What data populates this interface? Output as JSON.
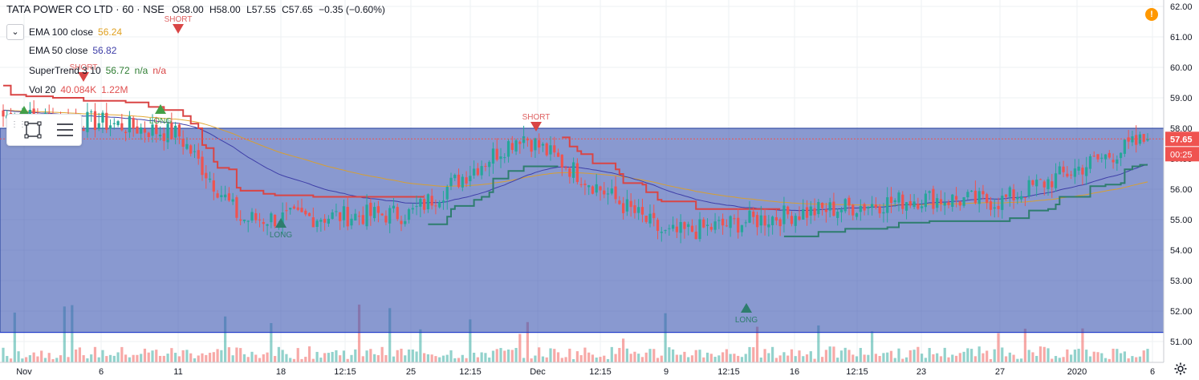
{
  "symbol": {
    "title": "TATA POWER CO LTD · 60 · NSE",
    "open": "O58.00",
    "high": "H58.00",
    "low": "L57.55",
    "close": "C57.65",
    "change": "−0.35 (−0.60%)"
  },
  "indicators": [
    {
      "name": "EMA 100 close",
      "value": "56.24",
      "color": "#e0a020"
    },
    {
      "name": "EMA 50 close",
      "value": "56.82",
      "color": "#3f3fa8"
    },
    {
      "name": "SuperTrend 3 10",
      "value": "56.72",
      "value2": "n/a",
      "value3": "n/a",
      "color": "#2e7d32"
    },
    {
      "name": "Vol 20",
      "value": "40.084K",
      "value2": "1.22M",
      "color": "#e05050"
    }
  ],
  "price_axis": {
    "ticks": [
      "62.00",
      "61.00",
      "60.00",
      "59.00",
      "58.00",
      "57.00",
      "56.00",
      "55.00",
      "54.00",
      "53.00",
      "52.00",
      "51.00"
    ],
    "last_price": "57.65",
    "countdown": "00:25",
    "range": [
      50.6,
      62.2
    ]
  },
  "time_axis": {
    "ticks": [
      "Nov",
      "6",
      "11",
      "18",
      "12:15",
      "25",
      "12:15",
      "Dec",
      "12:15",
      "9",
      "12:15",
      "16",
      "12:15",
      "23",
      "27",
      "2020",
      "6"
    ]
  },
  "signals": [
    {
      "label": "SHORT",
      "kind": "short"
    },
    {
      "label": "SHORT",
      "kind": "short"
    },
    {
      "label": "LONG",
      "kind": "long"
    },
    {
      "label": "SHORT",
      "kind": "short"
    },
    {
      "label": "LONG",
      "kind": "long"
    },
    {
      "label": "LONG",
      "kind": "long"
    },
    {
      "label": "LONG",
      "kind": "long"
    }
  ],
  "colors": {
    "up": "#26a69a",
    "down": "#ef5350",
    "rect_fill": "#3a55b0",
    "rect_border": "#1f3a9a",
    "ema100": "#e0a020",
    "ema50": "#3f3fa8",
    "st_up": "#2e7d6e",
    "st_down": "#d94545",
    "last": "#ef5350"
  },
  "chart_data": {
    "type": "candlestick",
    "symbol": "TATA POWER CO LTD",
    "interval": "60",
    "exchange": "NSE",
    "ylim": [
      50.6,
      62.2
    ],
    "anchors": {
      "x": [
        "Nov",
        "6",
        "11",
        "18",
        "25",
        "Dec",
        "9",
        "16",
        "23",
        "27",
        "2020"
      ],
      "close": [
        58.4,
        58.2,
        57.8,
        55.0,
        55.2,
        57.8,
        54.5,
        55.2,
        55.7,
        55.6,
        57.65
      ]
    },
    "last_close": 57.65,
    "ema100_last": 56.24,
    "ema50_last": 56.82,
    "supertrend_last": 56.72,
    "zone": {
      "top": 58.0,
      "bottom": 51.3
    }
  }
}
